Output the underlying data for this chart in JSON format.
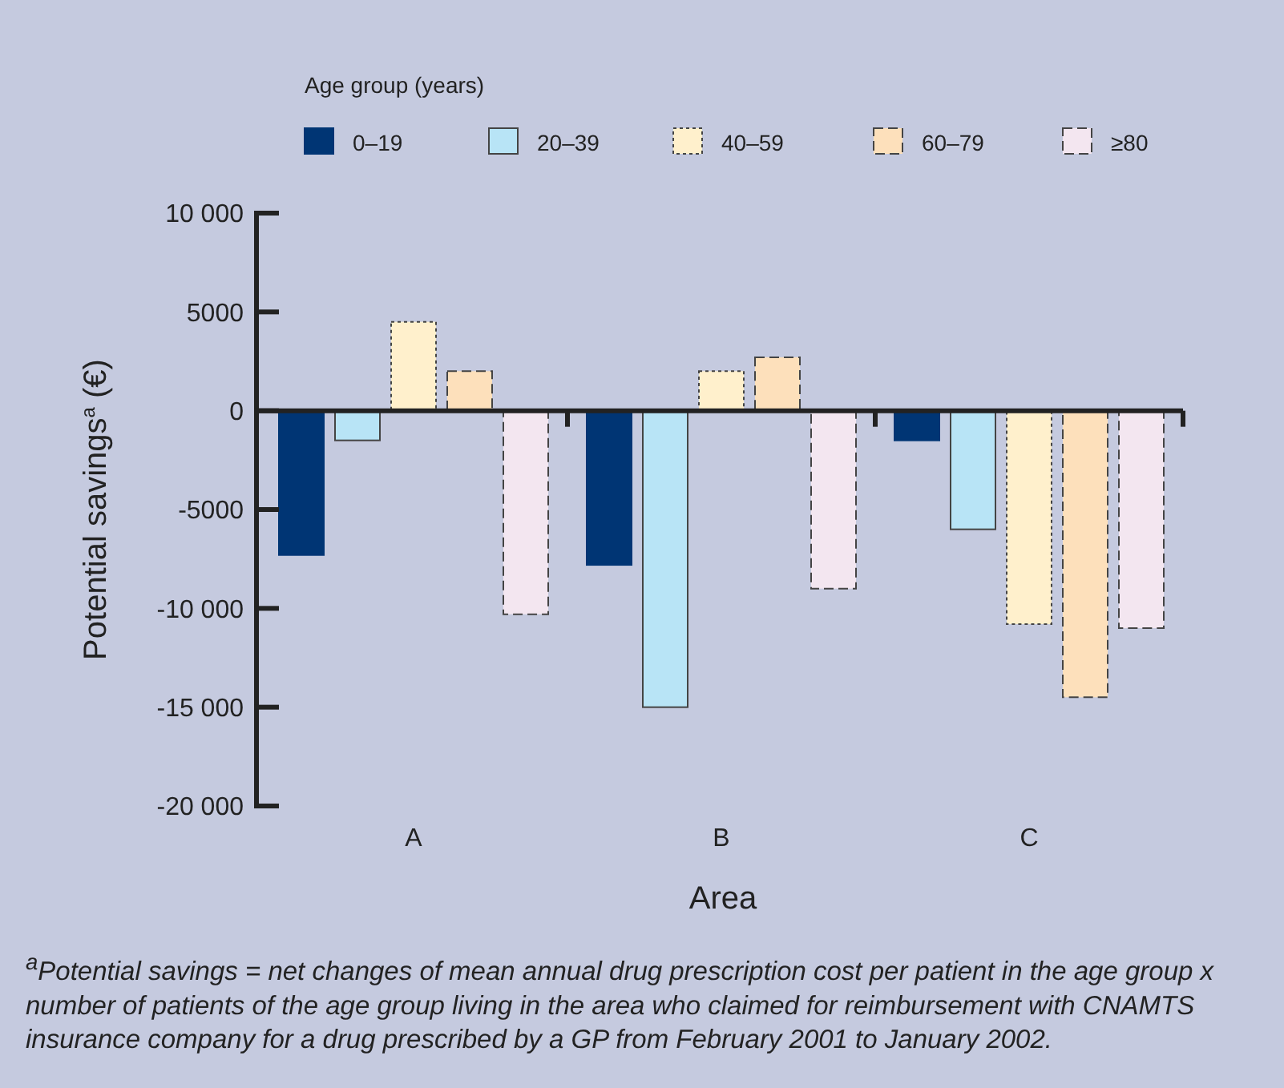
{
  "chart_data": {
    "type": "bar",
    "xlabel": "Area",
    "ylabel": "Potential savings$^{a}$ (€)",
    "legend_title": "Age group (years)",
    "legend": "top left",
    "categories": [
      "A",
      "B",
      "C"
    ],
    "series": [
      {
        "name": "0–19",
        "color": "#003574",
        "line_style": "solid",
        "values": [
          -7300,
          -7800,
          -1500
        ]
      },
      {
        "name": "20–39",
        "color": "#b8e4f6",
        "line_style": "solid",
        "values": [
          -1500,
          -15000,
          -6000
        ]
      },
      {
        "name": "40–59",
        "color": "#fff0cc",
        "line_style": "dotted",
        "values": [
          4500,
          2000,
          -10800
        ]
      },
      {
        "name": "60–79",
        "color": "#fde0bb",
        "line_style": "dashed",
        "values": [
          2000,
          2700,
          -14500
        ]
      },
      {
        "name": "≥80",
        "color": "#f3e6f0",
        "line_style": "dashed",
        "values": [
          -10300,
          -9000,
          -11000
        ]
      }
    ],
    "ylim": [
      -20000,
      10000
    ],
    "yticks": [
      {
        "value": 10000,
        "label": "10 000"
      },
      5000,
      0,
      -5000,
      {
        "value": -10000,
        "label": "-10 000"
      },
      {
        "value": -15000,
        "label": "-15 000"
      },
      {
        "value": -20000,
        "label": "-20 000"
      }
    ],
    "annotations": [
      "$^{a}$Potential savings = net changes of mean annual drug prescription cost per patient in the age group x number of patients of the age group living in the area who claimed for reimbursement with CNAMTS insurance company for a drug prescribed by a GP from February 2001 to January 2002."
    ]
  }
}
